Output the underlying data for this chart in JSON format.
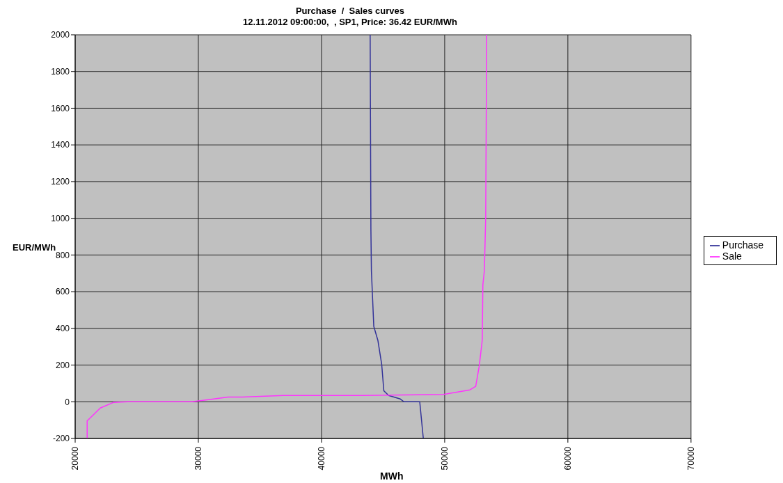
{
  "chart_data": {
    "type": "line",
    "title": "Purchase  /  Sales curves",
    "subtitle": "12.11.2012 09:00:00,  , SP1, Price: 36.42 EUR/MWh",
    "xlabel": "MWh",
    "ylabel": "EUR/MWh",
    "series": [
      {
        "name": "Purchase",
        "color": "#333399",
        "x": [
          43950,
          44010,
          44052,
          44245,
          44576,
          44886,
          45060,
          45450,
          46400,
          46690,
          47975,
          48266
        ],
        "values": [
          2000,
          940,
          712,
          411,
          335,
          204,
          60,
          34,
          15,
          0,
          0,
          -200
        ]
      },
      {
        "name": "Sale",
        "color": "#ff33ff",
        "x": [
          20973,
          20973,
          22040,
          23089,
          24254,
          29500,
          31248,
          32414,
          33580,
          36900,
          43310,
          49900,
          52050,
          52520,
          52810,
          53050,
          53100,
          53220,
          53330,
          53410
        ],
        "values": [
          -200,
          -104,
          -34,
          -4,
          0,
          0,
          15,
          26,
          26,
          34,
          34,
          40,
          65,
          84,
          197,
          335,
          637,
          712,
          1000,
          2000
        ]
      }
    ],
    "xlim": [
      20000,
      70000
    ],
    "xticks": [
      20000,
      30000,
      40000,
      50000,
      60000,
      70000
    ],
    "ylim": [
      -200,
      2000
    ],
    "yticks": [
      -200,
      0,
      200,
      400,
      600,
      800,
      1000,
      1200,
      1400,
      1600,
      1800,
      2000
    ],
    "grid": true,
    "legend": "right"
  }
}
